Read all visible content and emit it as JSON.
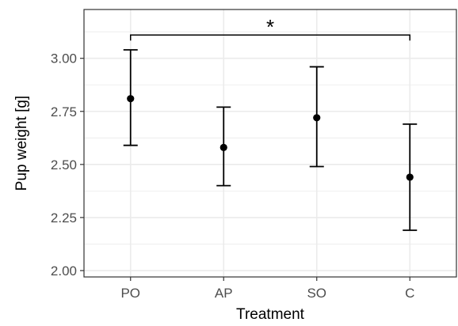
{
  "chart_data": {
    "type": "scatter",
    "subtype": "point-with-error-bars",
    "title": "",
    "xlabel": "Treatment",
    "ylabel": "Pup weight [g]",
    "categories": [
      "PO",
      "AP",
      "SO",
      "C"
    ],
    "series": [
      {
        "values": [
          2.81,
          2.58,
          2.72,
          2.44
        ],
        "error_low": [
          2.59,
          2.4,
          2.49,
          2.19
        ],
        "error_high": [
          3.04,
          2.77,
          2.96,
          2.69
        ]
      }
    ],
    "ylim": [
      1.97,
      3.23
    ],
    "yticks": [
      "2.00",
      "2.25",
      "2.50",
      "2.75",
      "3.00"
    ],
    "grid": true,
    "legend": "none",
    "annotations": [
      {
        "type": "significance-bracket",
        "from": "PO",
        "to": "C",
        "y": 3.11,
        "label": "*"
      }
    ],
    "colors": {
      "points": "#000000",
      "grid": "#ebebeb",
      "panel_border": "#333333"
    }
  }
}
